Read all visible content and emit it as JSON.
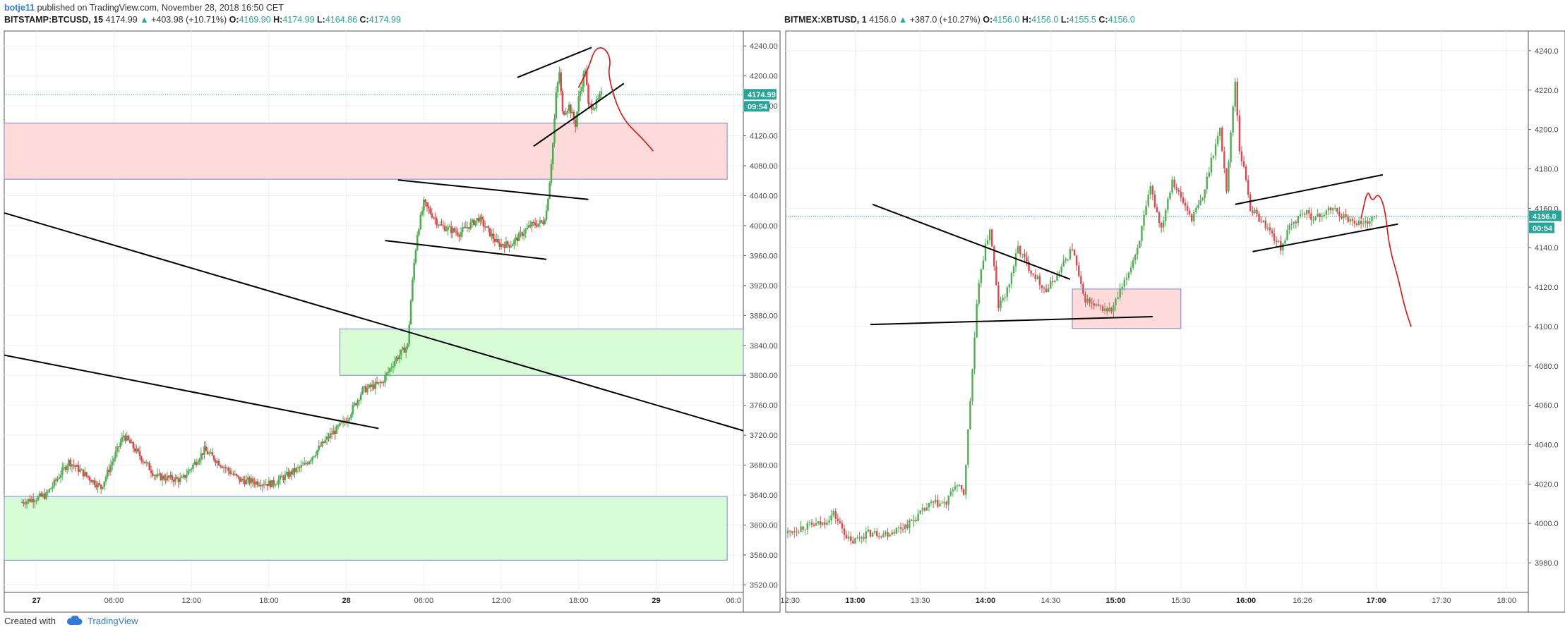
{
  "header": {
    "author": "botje11",
    "text": "published on TradingView.com, November 28, 2018 16:50 CET"
  },
  "footer": {
    "text": "Created with",
    "brand": "TradingView",
    "logo_icon": "tradingview-cloud-icon"
  },
  "colors": {
    "up": "#4caf50",
    "down": "#e0474c",
    "red_zone": "#ffd6d6",
    "green_zone": "#d4fcd0",
    "zone_border": "#7a83d6",
    "drawing_red": "#e01010",
    "trend_black": "#000000"
  },
  "chart_data": [
    {
      "type": "candlestick",
      "symbol": "BITSTAMP:BTCUSD, 15",
      "last": "4174.99",
      "change": "+403.98 (+10.71%)",
      "ohlc": {
        "O": "4169.90",
        "H": "4174.99",
        "L": "4164.86",
        "C": "4174.99"
      },
      "price_tag": "4174.99",
      "timer_tag": "09:54",
      "ylim": [
        3510,
        4260
      ],
      "yticks": [
        3520,
        3560,
        3600,
        3640,
        3680,
        3720,
        3760,
        3800,
        3840,
        3880,
        3920,
        3960,
        4000,
        4040,
        4080,
        4120,
        4160,
        4200,
        4240
      ],
      "ytick_labels": [
        "3520.00",
        "3560.00",
        "3600.00",
        "3640.00",
        "3680.00",
        "3720.00",
        "3760.00",
        "3800.00",
        "3840.00",
        "3880.00",
        "3920.00",
        "3960.00",
        "4000.00",
        "4040.00",
        "4080.00",
        "4120.00",
        "4160.00",
        "4200.00",
        "4240.00"
      ],
      "xticks": [
        "27",
        "06:00",
        "12:00",
        "18:00",
        "28",
        "06:00",
        "12:00",
        "18:00",
        "29",
        "06:0"
      ],
      "x_tick_t": [
        5,
        29,
        53,
        77,
        101,
        125,
        149,
        173,
        197,
        221
      ],
      "x_range": [
        -5,
        224
      ],
      "grid": true,
      "candle_path": [
        [
          0,
          3630
        ],
        [
          8,
          3640
        ],
        [
          15,
          3685
        ],
        [
          25,
          3650
        ],
        [
          32,
          3720
        ],
        [
          42,
          3665
        ],
        [
          50,
          3660
        ],
        [
          57,
          3700
        ],
        [
          68,
          3660
        ],
        [
          78,
          3655
        ],
        [
          88,
          3680
        ],
        [
          96,
          3720
        ],
        [
          101,
          3740
        ],
        [
          106,
          3780
        ],
        [
          112,
          3790
        ],
        [
          116,
          3820
        ],
        [
          120,
          3840
        ],
        [
          121,
          3900
        ],
        [
          122,
          3950
        ],
        [
          123,
          3990
        ],
        [
          125,
          4030
        ],
        [
          130,
          4000
        ],
        [
          136,
          3990
        ],
        [
          142,
          4010
        ],
        [
          148,
          3975
        ],
        [
          152,
          3975
        ],
        [
          158,
          4000
        ],
        [
          162,
          4005
        ],
        [
          163,
          4020
        ],
        [
          164,
          4060
        ],
        [
          165,
          4110
        ],
        [
          166,
          4175
        ],
        [
          167,
          4205
        ],
        [
          168,
          4150
        ],
        [
          170,
          4160
        ],
        [
          172,
          4135
        ],
        [
          173,
          4170
        ],
        [
          174,
          4190
        ],
        [
          175,
          4210
        ],
        [
          176,
          4160
        ],
        [
          178,
          4160
        ],
        [
          180,
          4175
        ]
      ],
      "zones": [
        {
          "color": "red",
          "price": [
            4062,
            4137
          ],
          "t": [
            -5,
            219
          ]
        },
        {
          "color": "green",
          "price": [
            3800,
            3862
          ],
          "t": [
            99,
            224
          ]
        },
        {
          "color": "green",
          "price": [
            3553,
            3638
          ],
          "t": [
            -5,
            219
          ]
        }
      ],
      "trendlines": [
        {
          "from": [
            -5,
            4017
          ],
          "to": [
            224,
            3726
          ]
        },
        {
          "from": [
            -5,
            3827
          ],
          "to": [
            111,
            3729
          ]
        },
        {
          "from": [
            113,
            3980
          ],
          "to": [
            163,
            3955
          ]
        },
        {
          "from": [
            117,
            4061
          ],
          "to": [
            176,
            4035
          ]
        },
        {
          "from": [
            154,
            4198
          ],
          "to": [
            177,
            4238
          ]
        },
        {
          "from": [
            159,
            4106
          ],
          "to": [
            187,
            4190
          ]
        }
      ],
      "freehand": [
        [
          173,
          4185
        ],
        [
          176,
          4210
        ],
        [
          178,
          4237
        ],
        [
          181,
          4238
        ],
        [
          183,
          4222
        ],
        [
          182,
          4200
        ],
        [
          186,
          4145
        ],
        [
          193,
          4115
        ],
        [
          196,
          4100
        ]
      ]
    },
    {
      "type": "candlestick",
      "symbol": "BITMEX:XBTUSD, 1",
      "last": "4156.0",
      "change": "+387.0 (+10.27%)",
      "ohlc": {
        "O": "4156.0",
        "H": "4156.0",
        "L": "4155.5",
        "C": "4156.0"
      },
      "price_tag": "4156.0",
      "timer_tag": "00:54",
      "ylim": [
        3965,
        4250
      ],
      "yticks": [
        3980,
        4000,
        4020,
        4040,
        4060,
        4080,
        4100,
        4120,
        4140,
        4160,
        4180,
        4200,
        4220,
        4240
      ],
      "ytick_labels": [
        "3980.0",
        "4000.0",
        "4020.0",
        "4040.0",
        "4060.0",
        "4080.0",
        "4100.0",
        "4120.0",
        "4140.0",
        "4160.0",
        "4180.0",
        "4200.0",
        "4220.0",
        "4240.0"
      ],
      "xticks": [
        "12:30",
        "13:00",
        "13:30",
        "14:00",
        "14:30",
        "15:00",
        "15:30",
        "16:00",
        "16:26",
        "17:00",
        "17:30",
        "18:00"
      ],
      "x_tick_t": [
        750,
        780,
        810,
        840,
        870,
        900,
        930,
        960,
        986,
        1020,
        1050,
        1080
      ],
      "x_range": [
        748,
        1090
      ],
      "grid": true,
      "candle_path": [
        [
          748,
          3995
        ],
        [
          755,
          3998
        ],
        [
          765,
          4000
        ],
        [
          770,
          4005
        ],
        [
          778,
          3990
        ],
        [
          785,
          3995
        ],
        [
          795,
          3995
        ],
        [
          805,
          4000
        ],
        [
          815,
          4010
        ],
        [
          822,
          4010
        ],
        [
          826,
          4020
        ],
        [
          830,
          4015
        ],
        [
          836,
          4110
        ],
        [
          838,
          4130
        ],
        [
          842,
          4150
        ],
        [
          846,
          4110
        ],
        [
          850,
          4118
        ],
        [
          855,
          4140
        ],
        [
          860,
          4130
        ],
        [
          868,
          4118
        ],
        [
          874,
          4128
        ],
        [
          880,
          4140
        ],
        [
          885,
          4115
        ],
        [
          890,
          4110
        ],
        [
          898,
          4108
        ],
        [
          904,
          4122
        ],
        [
          910,
          4140
        ],
        [
          916,
          4170
        ],
        [
          921,
          4150
        ],
        [
          926,
          4175
        ],
        [
          930,
          4165
        ],
        [
          935,
          4155
        ],
        [
          940,
          4165
        ],
        [
          944,
          4185
        ],
        [
          948,
          4200
        ],
        [
          951,
          4170
        ],
        [
          955,
          4225
        ],
        [
          957,
          4190
        ],
        [
          960,
          4175
        ],
        [
          962,
          4160
        ],
        [
          966,
          4155
        ],
        [
          970,
          4150
        ],
        [
          976,
          4140
        ],
        [
          980,
          4150
        ],
        [
          986,
          4158
        ],
        [
          992,
          4155
        ],
        [
          1000,
          4160
        ],
        [
          1006,
          4155
        ],
        [
          1014,
          4152
        ],
        [
          1020,
          4156
        ]
      ],
      "zones": [
        {
          "color": "red",
          "price": [
            4099,
            4119
          ],
          "t": [
            880,
            930
          ]
        }
      ],
      "trendlines": [
        {
          "from": [
            788,
            4162
          ],
          "to": [
            879,
            4124
          ]
        },
        {
          "from": [
            787,
            4101
          ],
          "to": [
            917,
            4105
          ]
        },
        {
          "from": [
            955,
            4162
          ],
          "to": [
            1023,
            4177
          ]
        },
        {
          "from": [
            963,
            4138
          ],
          "to": [
            1030,
            4152
          ]
        }
      ],
      "freehand": [
        [
          1013,
          4155
        ],
        [
          1016,
          4170
        ],
        [
          1018,
          4163
        ],
        [
          1021,
          4168
        ],
        [
          1024,
          4160
        ],
        [
          1026,
          4140
        ],
        [
          1030,
          4125
        ],
        [
          1033,
          4110
        ],
        [
          1036,
          4100
        ]
      ]
    }
  ]
}
